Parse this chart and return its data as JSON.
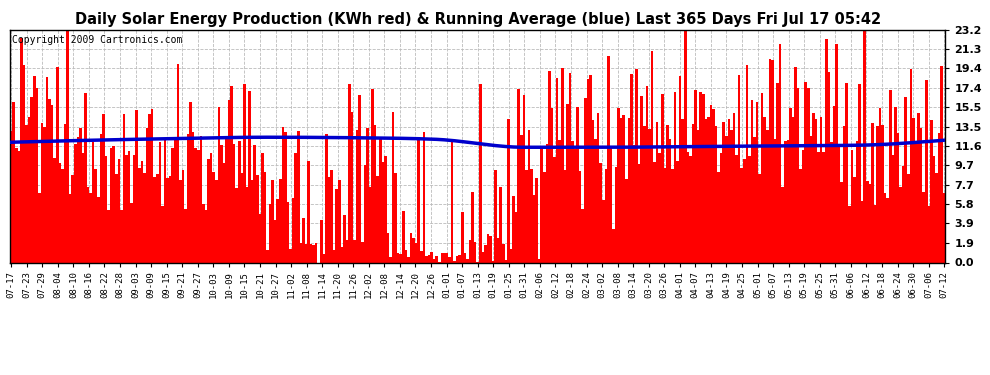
{
  "title": "Daily Solar Energy Production (KWh red) & Running Average (blue) Last 365 Days Fri Jul 17 05:42",
  "copyright": "Copyright 2009 Cartronics.com",
  "yticks": [
    0.0,
    1.9,
    3.9,
    5.8,
    7.7,
    9.7,
    11.6,
    13.5,
    15.5,
    17.4,
    19.4,
    21.3,
    23.2
  ],
  "ylim": [
    0,
    23.2
  ],
  "bar_color": "#FF0000",
  "avg_color": "#0000CC",
  "bg_color": "#FFFFFF",
  "grid_color": "#BBBBBB",
  "title_fontsize": 10.5,
  "copyright_fontsize": 7,
  "xtick_labels": [
    "07-17",
    "07-23",
    "07-29",
    "08-04",
    "08-10",
    "08-16",
    "08-22",
    "08-28",
    "09-03",
    "09-09",
    "09-15",
    "09-21",
    "09-27",
    "10-03",
    "10-09",
    "10-15",
    "10-21",
    "10-27",
    "11-02",
    "11-08",
    "11-14",
    "11-20",
    "11-26",
    "12-02",
    "12-08",
    "12-14",
    "12-20",
    "12-26",
    "01-01",
    "01-07",
    "01-13",
    "01-19",
    "01-25",
    "01-31",
    "02-06",
    "02-12",
    "02-18",
    "02-24",
    "03-02",
    "03-08",
    "03-14",
    "03-20",
    "03-26",
    "04-01",
    "04-07",
    "04-13",
    "04-19",
    "04-25",
    "05-01",
    "05-07",
    "05-13",
    "05-19",
    "05-25",
    "05-31",
    "06-06",
    "06-12",
    "06-18",
    "06-24",
    "06-30",
    "07-06",
    "07-12"
  ],
  "n_days": 365,
  "avg_points_x": [
    0,
    50,
    100,
    150,
    165,
    200,
    230,
    280,
    330,
    364
  ],
  "avg_points_y": [
    12.0,
    12.3,
    12.5,
    12.4,
    12.3,
    11.5,
    11.5,
    11.6,
    11.7,
    12.2
  ]
}
